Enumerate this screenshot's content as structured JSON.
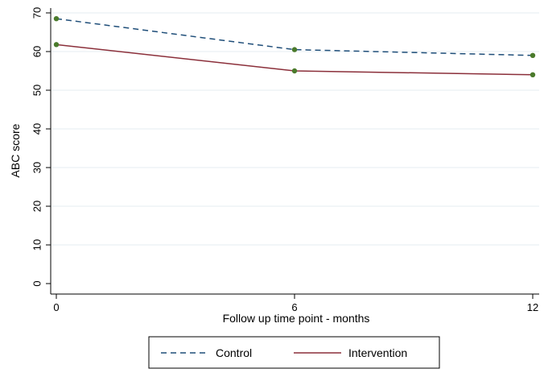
{
  "chart_data": {
    "type": "line",
    "title": "",
    "xlabel": "Follow up time point - months",
    "ylabel": "ABC score",
    "x": [
      0,
      6,
      12
    ],
    "x_ticks": [
      "0",
      "6",
      "12"
    ],
    "y_ticks": [
      "0",
      "10",
      "20",
      "30",
      "40",
      "50",
      "60",
      "70"
    ],
    "xlim": [
      0,
      12
    ],
    "ylim": [
      0,
      70
    ],
    "grid": true,
    "legend_position": "bottom",
    "series": [
      {
        "name": "Control",
        "values": [
          68.5,
          60.5,
          59
        ],
        "color": "#1f4e79",
        "dash": "dashed"
      },
      {
        "name": "Intervention",
        "values": [
          61.8,
          55,
          54
        ],
        "color": "#8b2f3a",
        "dash": "solid"
      }
    ],
    "marker_color": "#4a7a2b"
  }
}
